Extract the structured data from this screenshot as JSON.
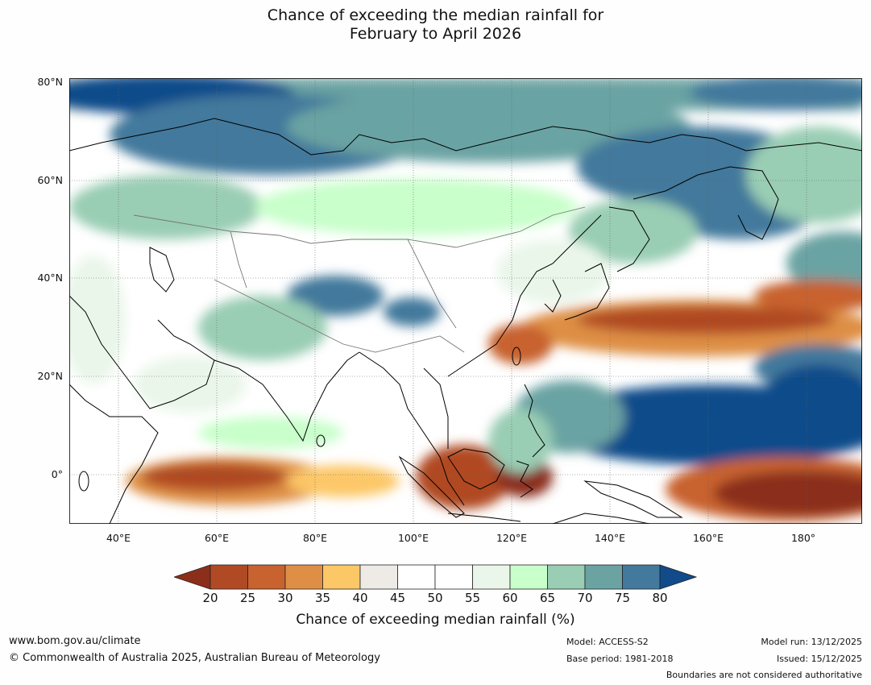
{
  "title_line1": "Chance of exceeding the median rainfall for",
  "title_line2": "February to April 2026",
  "lat_labels": [
    "80°N",
    "60°N",
    "40°N",
    "20°N",
    "0°"
  ],
  "lon_labels": [
    "40°E",
    "60°E",
    "80°E",
    "100°E",
    "120°E",
    "140°E",
    "160°E",
    "180°"
  ],
  "colorbar": {
    "ticks": [
      "20",
      "25",
      "30",
      "35",
      "40",
      "45",
      "50",
      "55",
      "60",
      "65",
      "70",
      "75",
      "80"
    ],
    "colors": [
      "#8b2f1b",
      "#b04a24",
      "#c8622e",
      "#de8f45",
      "#fcc767",
      "#eeebe6",
      "#ffffff",
      "#ffffff",
      "#eaf6ea",
      "#c8ffca",
      "#99cdb4",
      "#6ba3a3",
      "#43799c",
      "#114b8a"
    ],
    "title": "Chance of exceeding median rainfall (%)"
  },
  "footer": {
    "website": "www.bom.gov.au/climate",
    "copyright": "© Commonwealth of Australia 2025, Australian Bureau of Meteorology",
    "model": "Model: ACCESS-S2",
    "base_period": "Base period: 1981-2018",
    "model_run": "Model run: 13/12/2025",
    "issued": "Issued: 15/12/2025",
    "boundaries_note": "Boundaries are not considered authoritative"
  }
}
